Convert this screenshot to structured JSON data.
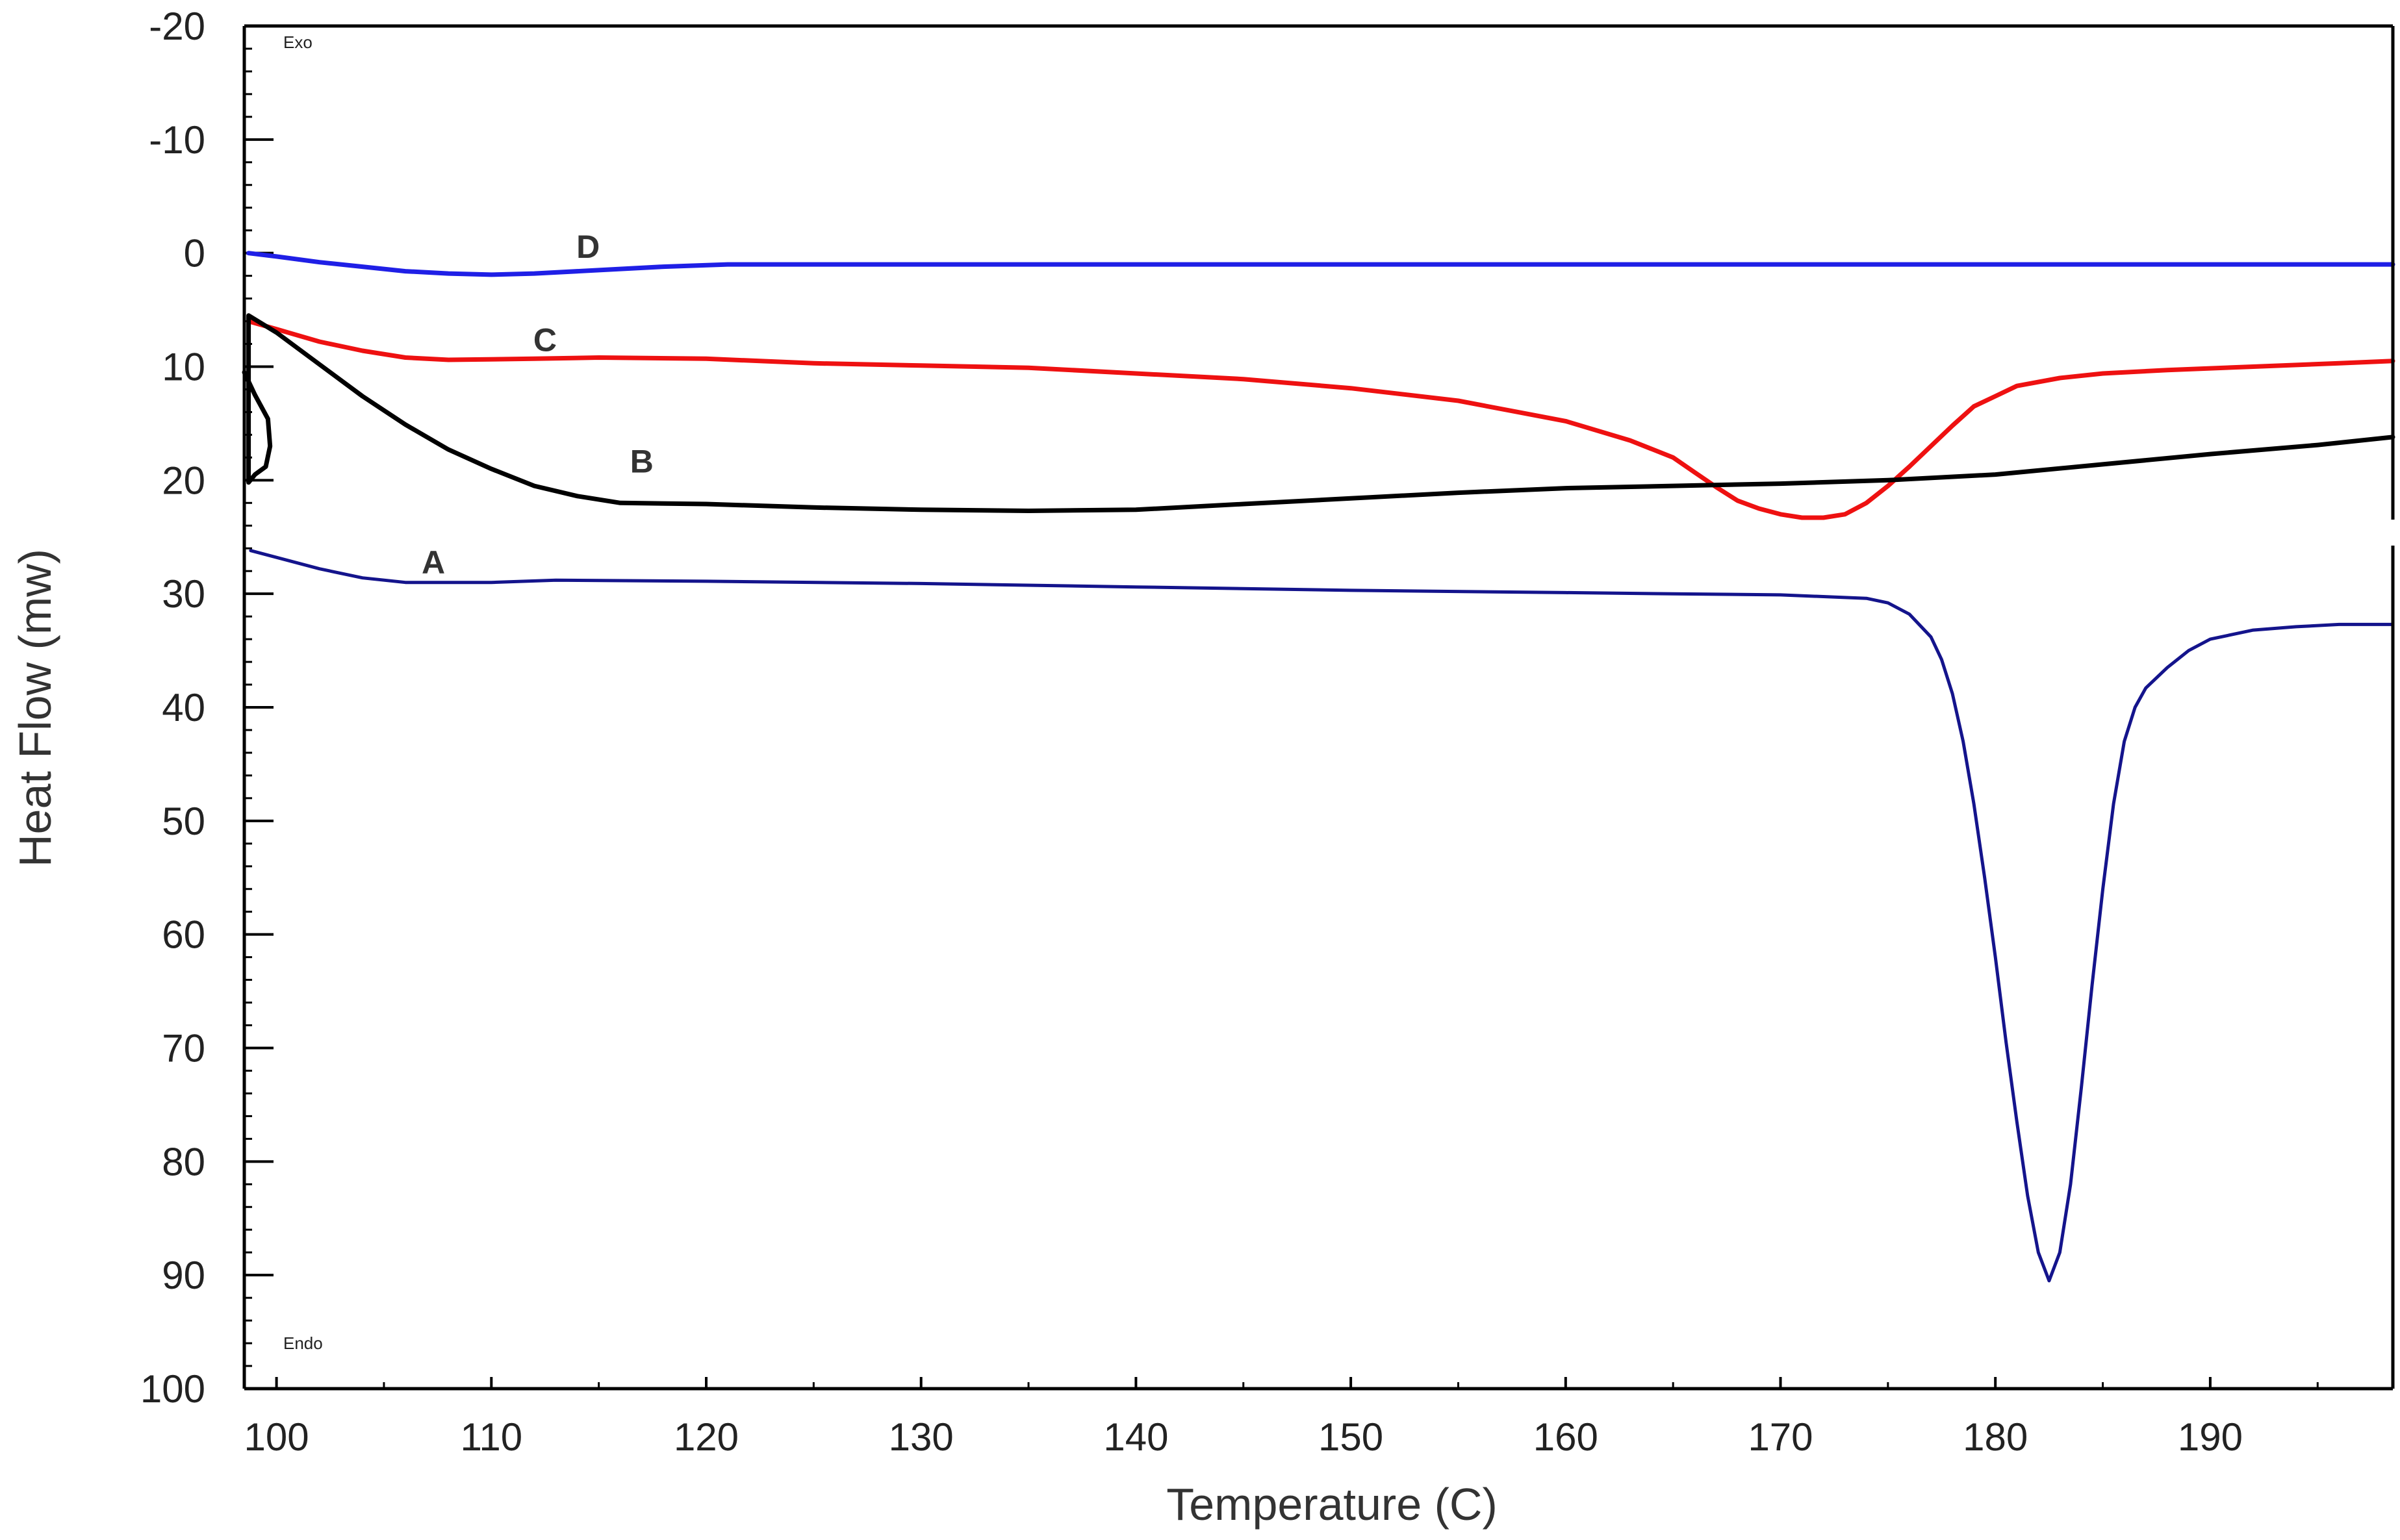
{
  "chart_data": {
    "type": "line",
    "title": "",
    "xlabel": "Temperature (C)",
    "ylabel": "Heat Flow (mw)",
    "xlim": [
      98.5,
      198.5
    ],
    "ylim": [
      -20,
      100
    ],
    "y_inverted": true,
    "grid": false,
    "x_ticks": [
      "100",
      "110",
      "120",
      "130",
      "140",
      "150",
      "160",
      "170",
      "180",
      "190"
    ],
    "y_ticks": [
      "-20",
      "-10",
      "0",
      "10",
      "20",
      "30",
      "40",
      "50",
      "60",
      "70",
      "80",
      "90",
      "100"
    ],
    "corner_labels": {
      "top": "Exo",
      "bottom": "Endo"
    },
    "series": [
      {
        "name": "D",
        "color": "#1f1fe6",
        "points": [
          [
            98.7,
            0.0
          ],
          [
            100,
            0.3
          ],
          [
            102,
            0.8
          ],
          [
            104,
            1.2
          ],
          [
            106,
            1.6
          ],
          [
            108,
            1.8
          ],
          [
            110,
            1.9
          ],
          [
            112,
            1.8
          ],
          [
            115,
            1.5
          ],
          [
            118,
            1.2
          ],
          [
            121,
            1.0
          ],
          [
            130,
            1.0
          ],
          [
            150,
            1.0
          ],
          [
            170,
            1.0
          ],
          [
            190,
            1.0
          ],
          [
            198.5,
            1.0
          ]
        ],
        "label_at": [
          114.5,
          -0.6
        ]
      },
      {
        "name": "C",
        "color": "#ee1111",
        "points": [
          [
            98.7,
            6.0
          ],
          [
            100,
            6.7
          ],
          [
            102,
            7.8
          ],
          [
            104,
            8.6
          ],
          [
            106,
            9.2
          ],
          [
            108,
            9.4
          ],
          [
            112,
            9.3
          ],
          [
            115,
            9.2
          ],
          [
            120,
            9.3
          ],
          [
            125,
            9.7
          ],
          [
            130,
            9.9
          ],
          [
            135,
            10.1
          ],
          [
            140,
            10.6
          ],
          [
            145,
            11.1
          ],
          [
            150,
            11.9
          ],
          [
            155,
            13.0
          ],
          [
            160,
            14.8
          ],
          [
            163,
            16.5
          ],
          [
            165,
            18.0
          ],
          [
            166,
            19.3
          ],
          [
            167,
            20.6
          ],
          [
            168,
            21.8
          ],
          [
            169,
            22.5
          ],
          [
            170,
            23.0
          ],
          [
            171,
            23.3
          ],
          [
            172,
            23.3
          ],
          [
            173,
            23.0
          ],
          [
            174,
            22.0
          ],
          [
            175,
            20.5
          ],
          [
            176,
            18.8
          ],
          [
            177,
            17.0
          ],
          [
            178,
            15.2
          ],
          [
            179,
            13.5
          ],
          [
            180,
            12.6
          ],
          [
            181,
            11.7
          ],
          [
            183,
            11.0
          ],
          [
            185,
            10.6
          ],
          [
            188,
            10.3
          ],
          [
            192,
            10.0
          ],
          [
            196,
            9.7
          ],
          [
            198.5,
            9.5
          ]
        ],
        "label_at": [
          112.5,
          7.6
        ]
      },
      {
        "name": "B",
        "color": "#000000",
        "points": [
          [
            98.5,
            10.5
          ],
          [
            99,
            12.5
          ],
          [
            99.6,
            14.6
          ],
          [
            99.7,
            17.0
          ],
          [
            99.5,
            18.8
          ],
          [
            99,
            19.5
          ],
          [
            98.7,
            20.2
          ],
          [
            98.7,
            5.5
          ],
          [
            100,
            7.0
          ],
          [
            102,
            9.8
          ],
          [
            104,
            12.6
          ],
          [
            106,
            15.1
          ],
          [
            108,
            17.3
          ],
          [
            110,
            19.0
          ],
          [
            112,
            20.5
          ],
          [
            114,
            21.4
          ],
          [
            116,
            22.0
          ],
          [
            120,
            22.1
          ],
          [
            125,
            22.4
          ],
          [
            130,
            22.6
          ],
          [
            135,
            22.7
          ],
          [
            140,
            22.6
          ],
          [
            145,
            22.1
          ],
          [
            150,
            21.6
          ],
          [
            155,
            21.1
          ],
          [
            160,
            20.7
          ],
          [
            165,
            20.5
          ],
          [
            170,
            20.3
          ],
          [
            175,
            20.0
          ],
          [
            180,
            19.5
          ],
          [
            185,
            18.6
          ],
          [
            190,
            17.7
          ],
          [
            195,
            16.9
          ],
          [
            198.5,
            16.2
          ]
        ],
        "label_at": [
          117,
          18.3
        ]
      },
      {
        "name": "A",
        "color": "#14148c",
        "points": [
          [
            98.8,
            26.2
          ],
          [
            100,
            26.8
          ],
          [
            102,
            27.8
          ],
          [
            104,
            28.6
          ],
          [
            106,
            29.0
          ],
          [
            110,
            29.0
          ],
          [
            113,
            28.8
          ],
          [
            120,
            28.9
          ],
          [
            130,
            29.1
          ],
          [
            140,
            29.4
          ],
          [
            150,
            29.7
          ],
          [
            160,
            29.9
          ],
          [
            165,
            30.0
          ],
          [
            170,
            30.1
          ],
          [
            174,
            30.4
          ],
          [
            175,
            30.8
          ],
          [
            176,
            31.8
          ],
          [
            177,
            33.8
          ],
          [
            177.5,
            35.8
          ],
          [
            178,
            38.8
          ],
          [
            178.5,
            43.0
          ],
          [
            179,
            48.5
          ],
          [
            179.5,
            55.0
          ],
          [
            180,
            62.0
          ],
          [
            180.5,
            69.5
          ],
          [
            181,
            76.5
          ],
          [
            181.5,
            83.0
          ],
          [
            182,
            88.0
          ],
          [
            182.5,
            90.5
          ],
          [
            183,
            88.0
          ],
          [
            183.5,
            82.0
          ],
          [
            184,
            73.5
          ],
          [
            184.5,
            64.5
          ],
          [
            185,
            56.0
          ],
          [
            185.5,
            48.5
          ],
          [
            186,
            43.0
          ],
          [
            186.5,
            40.0
          ],
          [
            187,
            38.3
          ],
          [
            188,
            36.5
          ],
          [
            189,
            35.0
          ],
          [
            190,
            34.0
          ],
          [
            192,
            33.2
          ],
          [
            194,
            32.9
          ],
          [
            196,
            32.7
          ],
          [
            198.5,
            32.7
          ]
        ],
        "label_at": [
          107.3,
          27.2
        ]
      }
    ]
  }
}
